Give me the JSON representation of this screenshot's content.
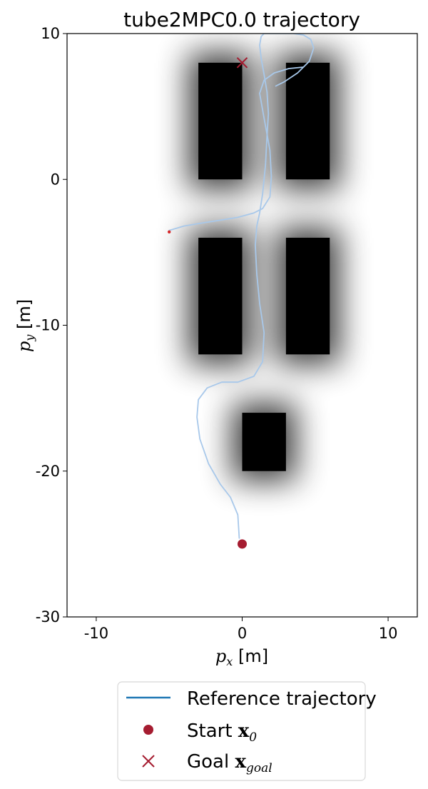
{
  "chart_data": {
    "type": "line",
    "title": "tube2MPC0.0 trajectory",
    "xlabel": {
      "symbol": "p",
      "subscript": "x",
      "unit": " [m]"
    },
    "ylabel": {
      "symbol": "p",
      "subscript": "y",
      "unit": " [m]"
    },
    "xlim": [
      -12,
      12
    ],
    "ylim": [
      -30,
      10
    ],
    "xticks": [
      -10,
      0,
      10
    ],
    "yticks": [
      10,
      0,
      -10,
      -20,
      -30
    ],
    "grid": false,
    "obstacles": [
      {
        "x0": -3,
        "x1": 0,
        "y0": 0,
        "y1": 8
      },
      {
        "x0": 3,
        "x1": 6,
        "y0": 0,
        "y1": 8
      },
      {
        "x0": -3,
        "x1": 0,
        "y0": -12,
        "y1": -4
      },
      {
        "x0": 3,
        "x1": 6,
        "y0": -12,
        "y1": -4
      },
      {
        "x0": 0,
        "x1": 3,
        "y0": -20,
        "y1": -16
      }
    ],
    "series": [
      {
        "name": "Reference trajectory",
        "color": "#a8c8ea",
        "x": [
          -0.2,
          -0.3,
          -0.8,
          -1.5,
          -2.3,
          -2.9,
          -3.1,
          -3.0,
          -2.4,
          -1.4,
          -0.3,
          0.8,
          1.4,
          1.5,
          1.2,
          1.0,
          0.9,
          1.0,
          1.2,
          1.4,
          1.6,
          1.7,
          1.8,
          1.7,
          1.5,
          1.3,
          1.2,
          1.3,
          1.5,
          2.0,
          2.7,
          3.5,
          4.2,
          4.7,
          4.9,
          4.6,
          3.8,
          2.9,
          2.3
        ],
        "y": [
          -24.6,
          -23.0,
          -21.8,
          -20.9,
          -19.5,
          -17.8,
          -16.3,
          -15.1,
          -14.3,
          -13.9,
          -13.9,
          -13.5,
          -12.5,
          -10.5,
          -8.5,
          -6.5,
          -4.5,
          -3.2,
          -2.3,
          -1.0,
          1.0,
          3.0,
          4.5,
          6.0,
          7.2,
          8.3,
          9.2,
          9.8,
          10.0,
          10.0,
          10.0,
          10.0,
          9.9,
          9.6,
          9.0,
          8.1,
          7.3,
          6.7,
          6.4
        ]
      },
      {
        "name": "Reference trajectory",
        "color": "#a8c8ea",
        "x": [
          -5.0,
          -4.0,
          -2.8,
          -1.5,
          -0.3,
          0.8,
          1.4,
          1.9,
          2.0,
          1.9,
          1.5,
          1.2,
          1.5,
          2.2,
          3.2,
          4.2
        ],
        "y": [
          -3.5,
          -3.2,
          -3.0,
          -2.8,
          -2.6,
          -2.3,
          -2.0,
          -1.2,
          0.2,
          2.0,
          4.2,
          5.9,
          6.8,
          7.3,
          7.6,
          7.7
        ]
      }
    ],
    "start": {
      "x": 0,
      "y": -25,
      "color": "#a51c30"
    },
    "goal": {
      "x": 0,
      "y": 8,
      "color": "#a51c30"
    },
    "extra_point": {
      "x": -5,
      "y": -3.6,
      "color": "#d62728"
    },
    "legend": {
      "position": "bottom",
      "entries": [
        {
          "text": "Reference trajectory",
          "marker": "line",
          "color": "#1f77b4"
        },
        {
          "text": "Start ",
          "math": "x",
          "sub": "0",
          "marker": "circle",
          "color": "#a51c30"
        },
        {
          "text": "Goal ",
          "math": "x",
          "sub": "goal",
          "marker": "x",
          "color": "#a51c30"
        }
      ]
    }
  }
}
